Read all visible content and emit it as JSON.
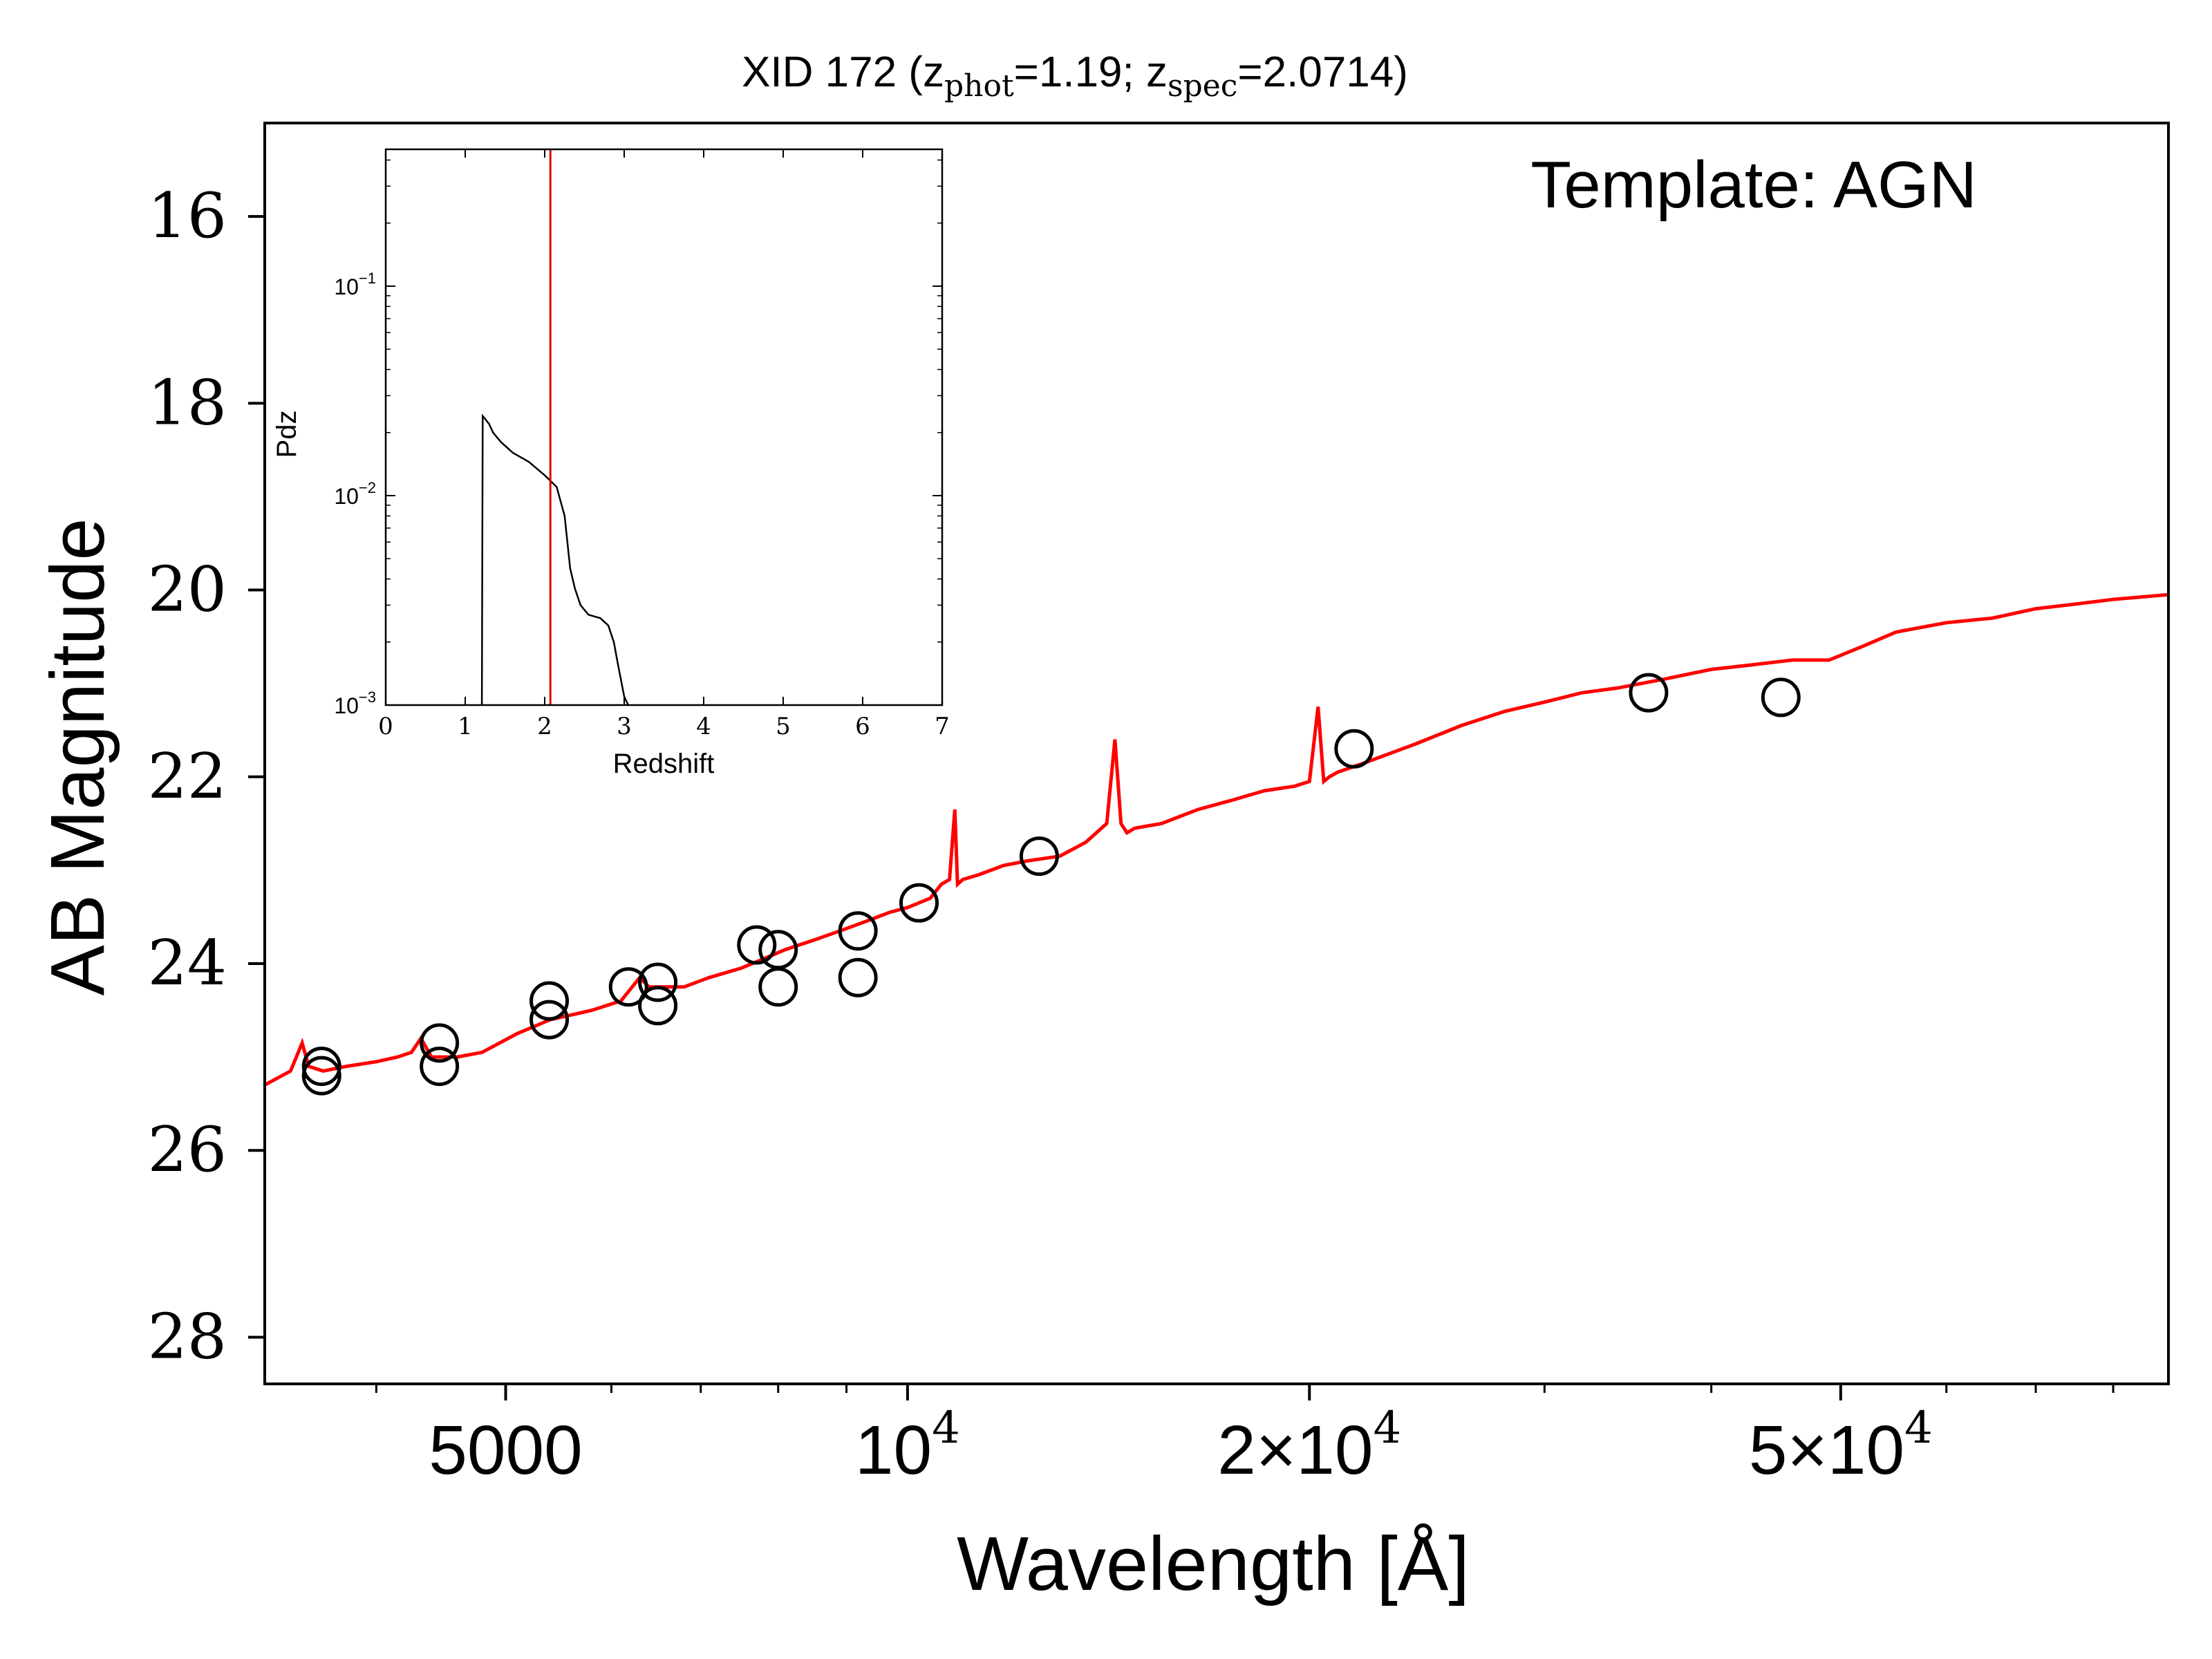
{
  "title": {
    "prefix": "XID 172 (z",
    "sub1": "phot",
    "mid": "=1.19; z",
    "sub2": "spec",
    "suffix": "=2.0714)"
  },
  "template_label": "Template: AGN",
  "colors": {
    "model": "#ff0000",
    "axes": "#000000",
    "zspec_line": "#dd0000"
  },
  "chart_data": [
    {
      "type": "line",
      "name": "sed",
      "title": "XID 172 (z_phot=1.19; z_spec=2.0714)",
      "xlabel": "Wavelength [Å]",
      "ylabel": "AB Magnitude",
      "xscale": "log",
      "xlim": [
        3300,
        88000
      ],
      "ylim": [
        28.5,
        15.0
      ],
      "y_inverted": true,
      "grid": false,
      "x_ticks": [
        {
          "value": 5000,
          "label": "5000"
        },
        {
          "value": 10000,
          "label": "10",
          "sup": "4"
        },
        {
          "value": 20000,
          "label": "2×10",
          "sup": "4"
        },
        {
          "value": 50000,
          "label": "5×10",
          "sup": "4"
        }
      ],
      "y_ticks": [
        16,
        18,
        20,
        22,
        24,
        26,
        28
      ],
      "model_line": {
        "x": [
          3300,
          3450,
          3520,
          3560,
          3650,
          3800,
          4000,
          4150,
          4250,
          4320,
          4400,
          4600,
          4800,
          5100,
          5400,
          5800,
          6100,
          6300,
          6400,
          6600,
          6800,
          7100,
          7500,
          7800,
          8100,
          8500,
          8900,
          9300,
          9700,
          10000,
          10400,
          10600,
          10750,
          10850,
          10900,
          11000,
          11300,
          11800,
          12300,
          13000,
          13600,
          14100,
          14300,
          14450,
          14600,
          14800,
          15500,
          16500,
          17500,
          18500,
          19500,
          20000,
          20300,
          20500,
          20700,
          21000,
          22000,
          24000,
          26000,
          28000,
          30000,
          32000,
          34000,
          37000,
          40000,
          43000,
          46000,
          49000,
          52000,
          55000,
          60000,
          65000,
          70000,
          75000,
          80000,
          88000
        ],
        "y": [
          25.3,
          25.15,
          24.85,
          25.1,
          25.15,
          25.1,
          25.05,
          25.0,
          24.95,
          24.8,
          25.0,
          25.0,
          24.95,
          24.75,
          24.6,
          24.5,
          24.4,
          24.15,
          24.25,
          24.25,
          24.25,
          24.15,
          24.05,
          23.95,
          23.85,
          23.75,
          23.65,
          23.55,
          23.45,
          23.4,
          23.3,
          23.15,
          23.1,
          22.35,
          23.15,
          23.1,
          23.05,
          22.95,
          22.9,
          22.85,
          22.7,
          22.5,
          21.6,
          22.5,
          22.6,
          22.55,
          22.5,
          22.35,
          22.25,
          22.15,
          22.1,
          22.05,
          21.25,
          22.05,
          22.0,
          21.95,
          21.85,
          21.65,
          21.45,
          21.3,
          21.2,
          21.1,
          21.05,
          20.95,
          20.85,
          20.8,
          20.75,
          20.75,
          20.6,
          20.45,
          20.35,
          20.3,
          20.2,
          20.15,
          20.1,
          20.05
        ]
      },
      "points": [
        {
          "x": 3640,
          "y": 25.2
        },
        {
          "x": 3640,
          "y": 25.1
        },
        {
          "x": 4460,
          "y": 24.85
        },
        {
          "x": 4460,
          "y": 25.1
        },
        {
          "x": 5390,
          "y": 24.4
        },
        {
          "x": 5390,
          "y": 24.6
        },
        {
          "x": 6180,
          "y": 24.25
        },
        {
          "x": 6500,
          "y": 24.2
        },
        {
          "x": 6500,
          "y": 24.45
        },
        {
          "x": 7710,
          "y": 23.8
        },
        {
          "x": 8000,
          "y": 23.85
        },
        {
          "x": 8000,
          "y": 24.25
        },
        {
          "x": 9180,
          "y": 23.65
        },
        {
          "x": 9180,
          "y": 24.15
        },
        {
          "x": 10200,
          "y": 23.35
        },
        {
          "x": 12550,
          "y": 22.85
        },
        {
          "x": 21600,
          "y": 21.7
        },
        {
          "x": 35900,
          "y": 21.1
        },
        {
          "x": 45100,
          "y": 21.15
        }
      ]
    },
    {
      "type": "line",
      "name": "pdz-inset",
      "xlabel": "Redshift",
      "ylabel": "Pdz",
      "xlim": [
        0,
        7
      ],
      "ylim": [
        0.001,
        0.45
      ],
      "yscale": "log",
      "x_ticks": [
        0,
        1,
        2,
        3,
        4,
        5,
        6,
        7
      ],
      "y_ticks": [
        {
          "value": 0.1,
          "base": "10",
          "exp": "−1"
        },
        {
          "value": 0.01,
          "base": "10",
          "exp": "−2"
        },
        {
          "value": 0.001,
          "base": "10",
          "exp": "−3"
        }
      ],
      "z_spec": 2.0714,
      "curve": {
        "x": [
          1.21,
          1.22,
          1.26,
          1.3,
          1.35,
          1.45,
          1.6,
          1.8,
          2.0,
          2.15,
          2.25,
          2.32,
          2.38,
          2.45,
          2.55,
          2.7,
          2.8,
          2.87,
          2.93,
          3.0,
          3.05
        ],
        "y": [
          0.001,
          0.024,
          0.023,
          0.022,
          0.02,
          0.018,
          0.016,
          0.0145,
          0.0125,
          0.011,
          0.008,
          0.0045,
          0.0036,
          0.003,
          0.0027,
          0.0026,
          0.0024,
          0.002,
          0.0015,
          0.0011,
          0.001
        ]
      }
    }
  ]
}
